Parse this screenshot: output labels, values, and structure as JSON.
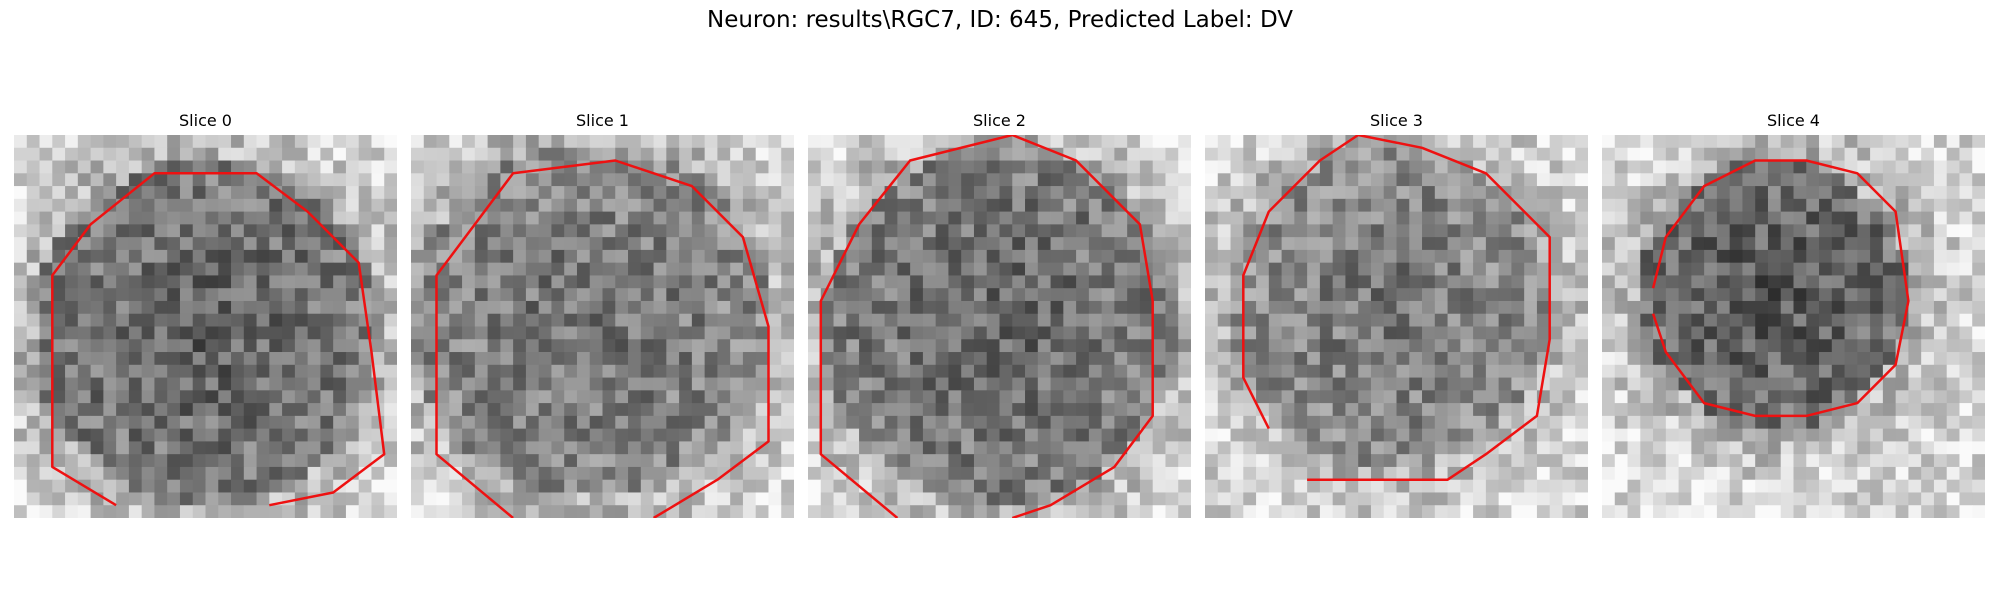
{
  "figure": {
    "title": "Neuron: results\\RGC7, ID: 645, Predicted Label: DV"
  },
  "panels": [
    {
      "title": "Slice 0"
    },
    {
      "title": "Slice 1"
    },
    {
      "title": "Slice 2"
    },
    {
      "title": "Slice 3"
    },
    {
      "title": "Slice 4"
    }
  ],
  "colors": {
    "contour": "#ee1111",
    "colormap": "grayscale"
  }
}
